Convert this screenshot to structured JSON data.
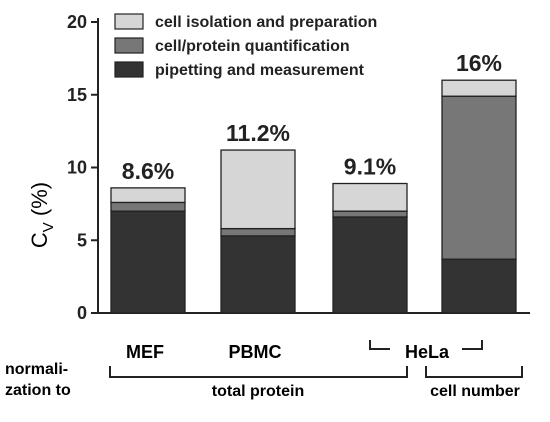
{
  "chart_data": {
    "type": "bar",
    "stacked": true,
    "categories": [
      "MEF",
      "PBMC",
      "HeLa",
      "HeLa"
    ],
    "series": [
      {
        "name": "pipetting and measurement",
        "color": "#333333",
        "values": [
          7.0,
          5.3,
          6.6,
          3.7
        ]
      },
      {
        "name": "cell/protein quantification",
        "color": "#777777",
        "values": [
          0.6,
          0.5,
          0.4,
          11.2
        ]
      },
      {
        "name": "cell isolation and preparation",
        "color": "#d6d6d6",
        "values": [
          1.0,
          5.4,
          1.9,
          1.1
        ]
      }
    ],
    "legend_order": [
      "cell isolation and preparation",
      "cell/protein quantification",
      "pipetting and measurement"
    ],
    "totals_labels": [
      "8.6%",
      "11.2%",
      "9.1%",
      "16%"
    ],
    "ylabel": "C",
    "ylabel_sub": "V",
    "ylabel_unit": " (%)",
    "ylim": [
      0,
      20
    ],
    "yticks": [
      0,
      5,
      10,
      15,
      20
    ],
    "legend_position": "top-left",
    "grid": false
  },
  "annotations": {
    "normalization_label_line1": "normali-",
    "normalization_label_line2": "zation to",
    "total_protein": "total protein",
    "cell_number": "cell number"
  }
}
